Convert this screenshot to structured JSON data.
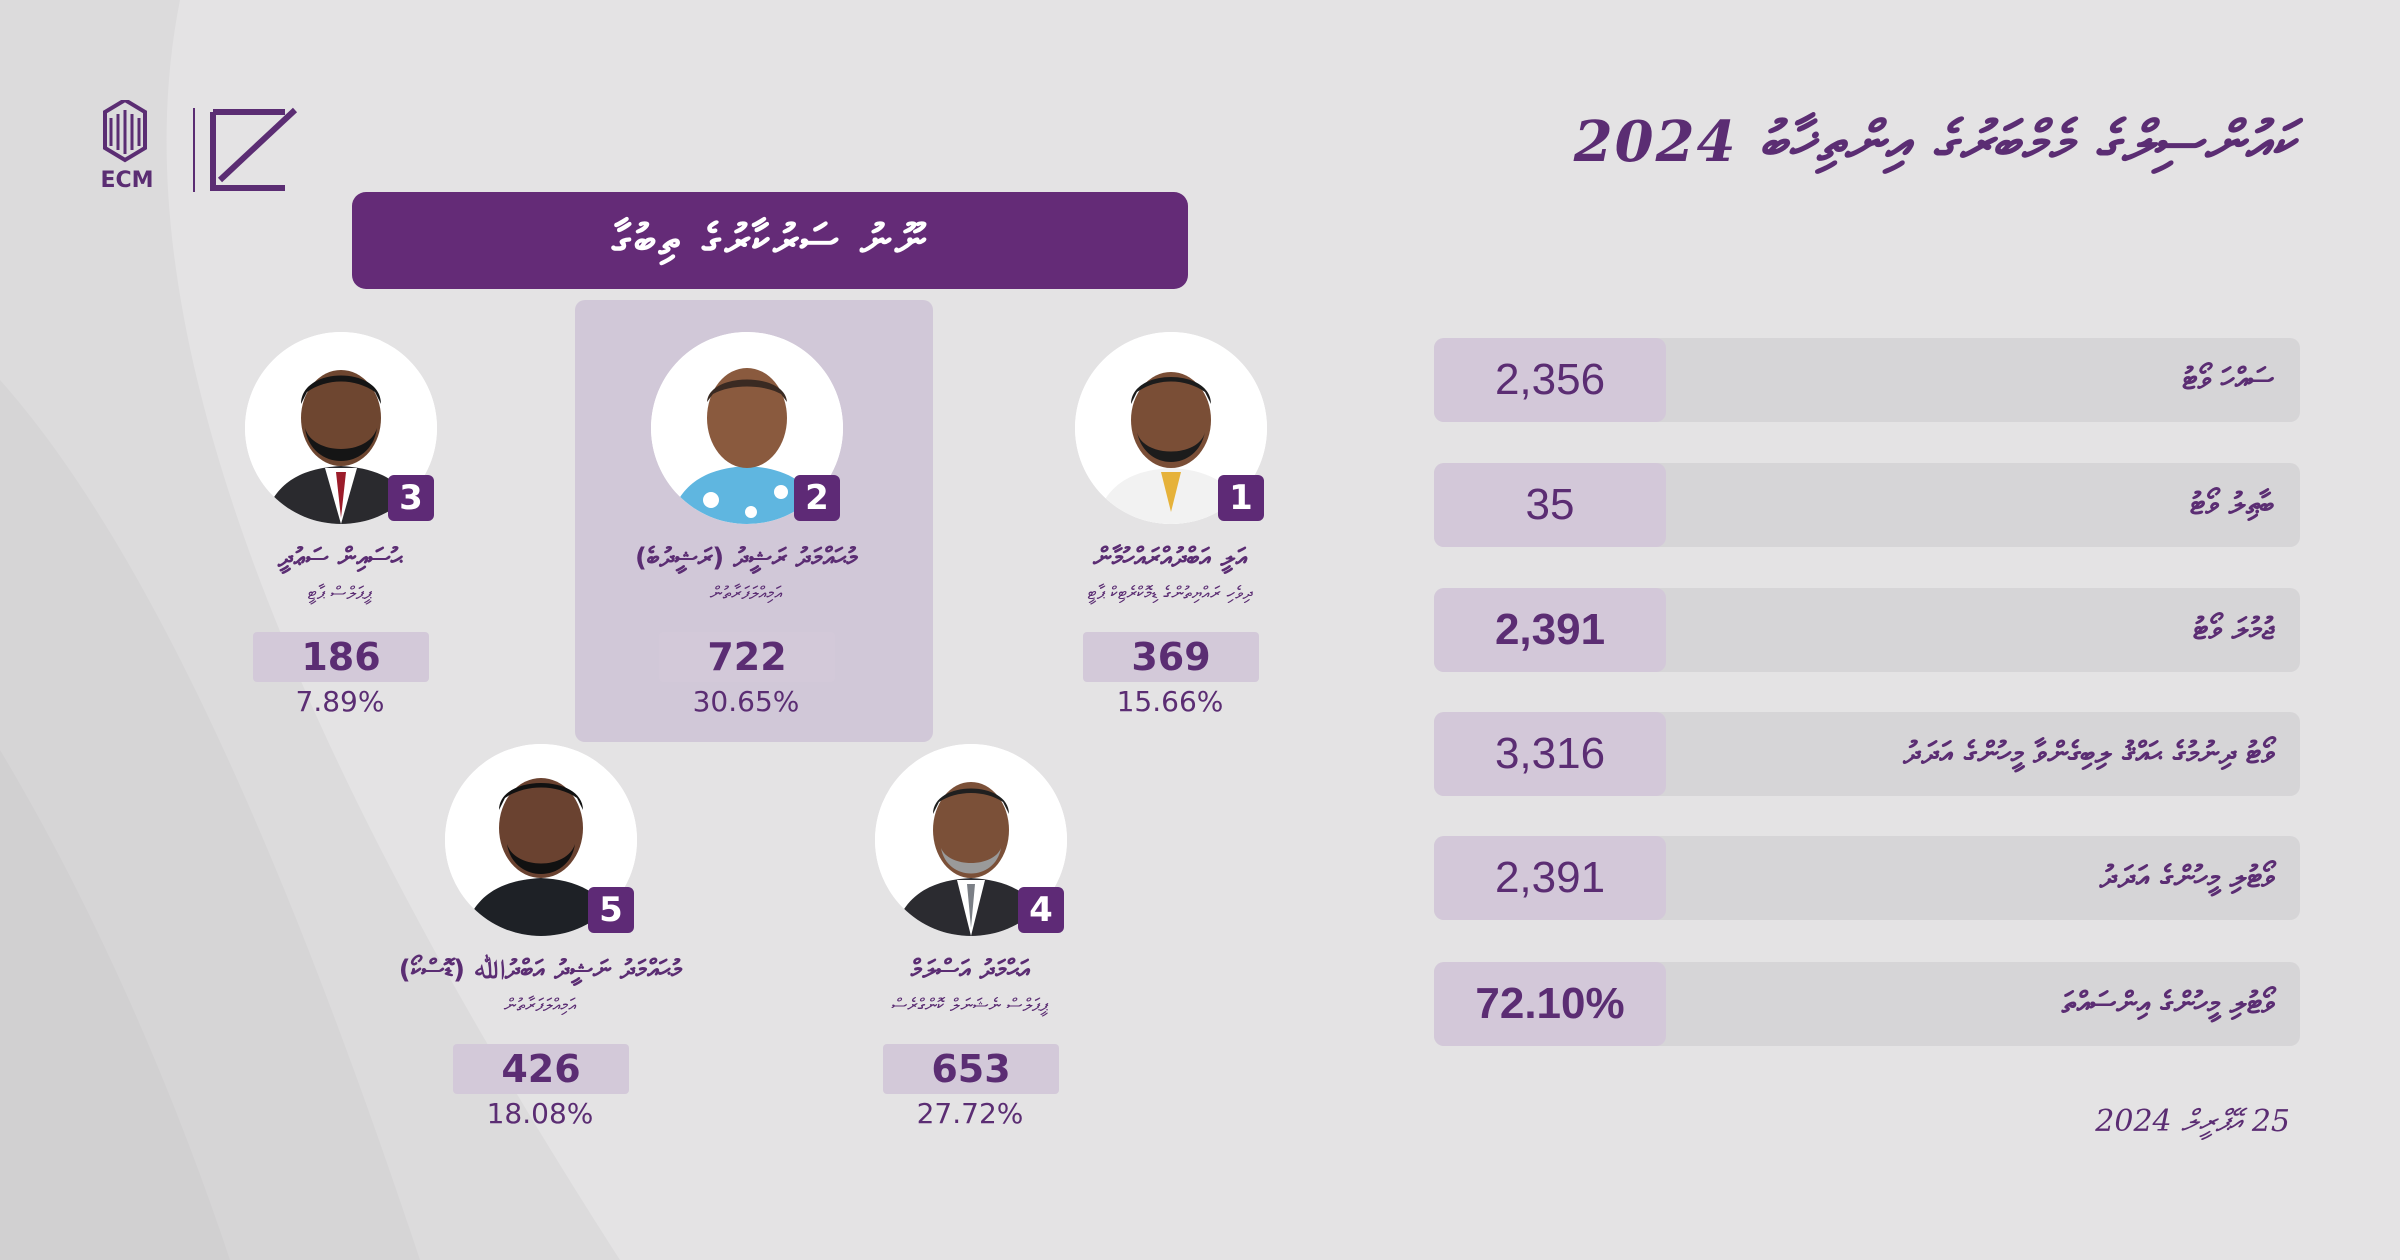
{
  "logo": {
    "text": "ECM"
  },
  "header": {
    "title": "ކައުންސިލްގެ މެމްބަރުގެ އިންތިޚާބު 2024"
  },
  "region": {
    "banner": "ނޫނު ސަރުކާރުގެ ތިބުގާ"
  },
  "candidates": [
    {
      "number": "1",
      "name": "އަލީ އަބްދުއްރައްހުމާން",
      "affiliation": "ދިވެހި ރައްޔިތުންގެ ޑިމޮކްރެޓިކް ޕާޓީ",
      "votes": "369",
      "percent": "15.66%"
    },
    {
      "number": "2",
      "name": "މުޙައްމަދު ރަޝީދު (ރަޝީދުބެ)",
      "affiliation": "އަމިއްލަފަރާތުން",
      "votes": "722",
      "percent": "30.65%"
    },
    {
      "number": "3",
      "name": "ޙުސައިން ސަޢުދީ",
      "affiliation": "ޕީޕަލްސް ޕާޓީ",
      "votes": "186",
      "percent": "7.89%"
    },
    {
      "number": "4",
      "name": "އަޙްމަދު އަސްލަމް",
      "affiliation": "ޕީޕަލްސް ނެޝަނަލް ކޮންގްރެސް",
      "votes": "653",
      "percent": "27.72%"
    },
    {
      "number": "5",
      "name": "މުޙައްމަދު ނަޝީދު އަބްދުﷲ (ޑޮސްކޯ)",
      "affiliation": "އަމިއްލަފަރާތުން",
      "votes": "426",
      "percent": "18.08%"
    }
  ],
  "stats": [
    {
      "label": "ސައްހަ ވޯޓު",
      "value": "2,356"
    },
    {
      "label": "ބާޠިލު ވޯޓު",
      "value": "35"
    },
    {
      "label": "ޖުމުލަ ވޯޓު",
      "value": "2,391"
    },
    {
      "label": "ވޯޓު ދިނުމުގެ ޙައްޤު ލިބިގެންވާ މީހުންގެ އަދަދު",
      "value": "3,316"
    },
    {
      "label": "ވޯޓުލި މީހުންގެ އަދަދު",
      "value": "2,391"
    },
    {
      "label": "ވޯޓުލި މީހުންގެ އިންސައްތަ",
      "value": "72.10%"
    }
  ],
  "date": "25 އޭޕްރީލް 2024",
  "colors": {
    "accent": "#642b77",
    "box": "#d3c9d9",
    "highlight": "#d1c8d8"
  }
}
